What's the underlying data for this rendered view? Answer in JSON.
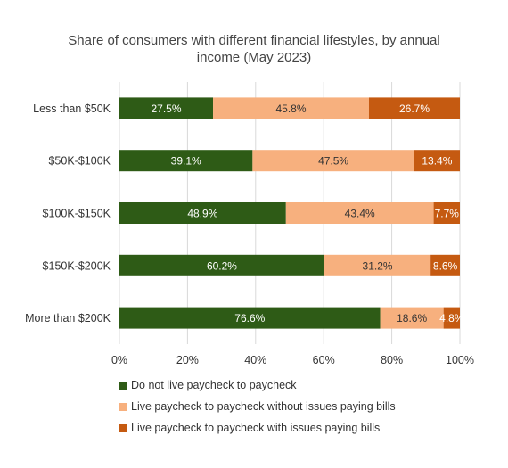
{
  "chart_data": {
    "type": "bar",
    "orientation": "horizontal",
    "stacked": true,
    "title": "Share of consumers with different financial lifestyles, by annual income (May 2023)",
    "xlabel": "",
    "ylabel": "",
    "xlim": [
      0,
      100
    ],
    "x_ticks": [
      "0%",
      "20%",
      "40%",
      "60%",
      "80%",
      "100%"
    ],
    "grid": true,
    "legend_position": "bottom",
    "categories": [
      "Less than $50K",
      "$50K-$100K",
      "$100K-$150K",
      "$150K-$200K",
      "More than $200K"
    ],
    "series": [
      {
        "name": "Do not live paycheck to paycheck",
        "color": "#2e5b16",
        "label_color": "#ffffff",
        "values": [
          27.5,
          39.1,
          48.9,
          60.2,
          76.6
        ],
        "labels": [
          "27.5%",
          "39.1%",
          "48.9%",
          "60.2%",
          "76.6%"
        ]
      },
      {
        "name": "Live paycheck to paycheck without issues paying bills",
        "color": "#f7b07e",
        "label_color": "#333333",
        "values": [
          45.8,
          47.5,
          43.4,
          31.2,
          18.6
        ],
        "labels": [
          "45.8%",
          "47.5%",
          "43.4%",
          "31.2%",
          "18.6%"
        ]
      },
      {
        "name": "Live paycheck to paycheck with issues paying bills",
        "color": "#c55a11",
        "label_color": "#ffffff",
        "values": [
          26.7,
          13.4,
          7.7,
          8.6,
          4.8
        ],
        "labels": [
          "26.7%",
          "13.4%",
          "7.7%",
          "8.6%",
          "4.8%"
        ]
      }
    ]
  }
}
